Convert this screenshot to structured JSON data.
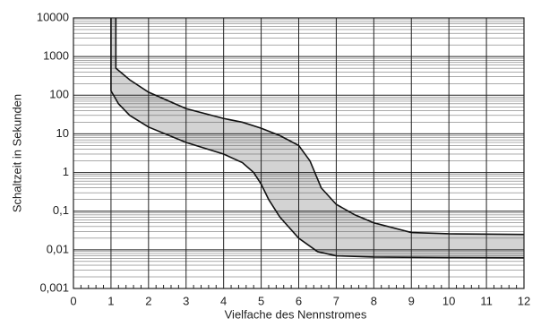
{
  "chart_data": {
    "type": "line",
    "xlabel": "Vielfache des Nennstromes",
    "ylabel": "Schaltzeit in Sekunden",
    "xlim": [
      0,
      12
    ],
    "xticks": [
      0,
      1,
      2,
      3,
      4,
      5,
      6,
      7,
      8,
      9,
      10,
      11,
      12
    ],
    "ylim": [
      0.001,
      10000
    ],
    "yscale": "log",
    "yticks": [
      {
        "value": 0.001,
        "label": "0,001"
      },
      {
        "value": 0.01,
        "label": "0,01"
      },
      {
        "value": 0.1,
        "label": "0,1"
      },
      1,
      10,
      100,
      1000,
      10000
    ],
    "grid": true,
    "fill_between": "#d3d3d3",
    "series": [
      {
        "color": "#111111",
        "x": [
          1.13,
          1.13,
          1.5,
          2,
          3,
          4,
          4.5,
          5,
          5.5,
          6,
          6.3,
          6.6,
          7,
          7.5,
          8,
          9,
          10,
          12
        ],
        "values": [
          10000,
          500,
          250,
          120,
          45,
          25,
          20,
          14,
          9,
          5,
          2,
          0.4,
          0.15,
          0.08,
          0.05,
          0.028,
          0.026,
          0.025
        ]
      },
      {
        "color": "#111111",
        "x": [
          1,
          1,
          1.2,
          1.5,
          2,
          3,
          4,
          4.5,
          4.8,
          5,
          5.2,
          5.5,
          6,
          6.5,
          7,
          8,
          10,
          12
        ],
        "values": [
          10000,
          130,
          60,
          30,
          15,
          6,
          3,
          1.8,
          1,
          0.5,
          0.2,
          0.07,
          0.02,
          0.009,
          0.007,
          0.0065,
          0.0063,
          0.0062
        ]
      }
    ]
  }
}
